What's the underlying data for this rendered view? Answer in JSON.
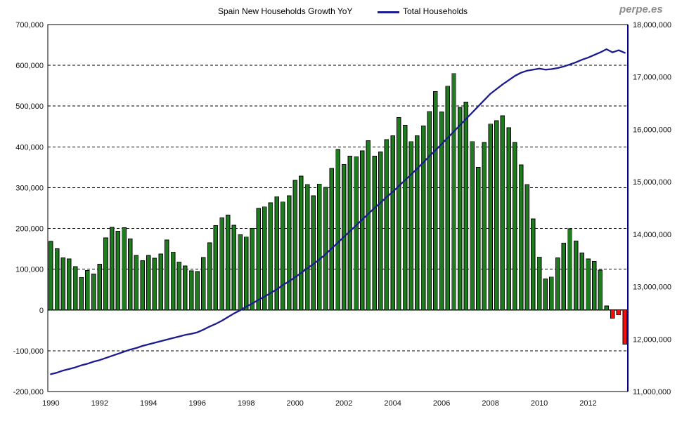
{
  "header": {
    "series1_label": "Spain New Households Growth YoY",
    "series2_label": "Total Households",
    "watermark": "perpe.es"
  },
  "chart_data": {
    "type": "bar+line",
    "frequency": "quarterly",
    "x_start": "1990-Q1",
    "x_end": "2013-Q3",
    "grid": "horizontal-dashed",
    "legend_position": "top",
    "colors": {
      "bar_positive": "#1e7c1e",
      "bar_negative": "#f90d07",
      "bar_outline": "#000000",
      "line": "#1b1b8f",
      "right_axis_line": "#00008b",
      "axis": "#000000"
    },
    "left_axis": {
      "min": -200000,
      "max": 700000,
      "step": 100000,
      "tick_values": [
        700000,
        600000,
        500000,
        400000,
        300000,
        200000,
        100000,
        0,
        -100000,
        -200000
      ],
      "tick_labels": [
        "700,000",
        "600,000",
        "500,000",
        "400,000",
        "300,000",
        "200,000",
        "100,000",
        "0",
        "-100,000",
        "-200,000"
      ]
    },
    "right_axis": {
      "min": 11000000,
      "max": 18000000,
      "step": 1000000,
      "tick_values": [
        18000000,
        17000000,
        16000000,
        15000000,
        14000000,
        13000000,
        12000000,
        11000000
      ],
      "tick_labels": [
        "18,000,000",
        "17,000,000",
        "16,000,000",
        "15,000,000",
        "14,000,000",
        "13,000,000",
        "12,000,000",
        "11,000,000"
      ]
    },
    "x_tick_years": [
      1990,
      1992,
      1994,
      1996,
      1998,
      2000,
      2002,
      2004,
      2006,
      2008,
      2010,
      2012
    ],
    "x_tick_labels": [
      "1990",
      "1992",
      "1994",
      "1996",
      "1998",
      "2000",
      "2002",
      "2004",
      "2006",
      "2008",
      "2010",
      "2012"
    ],
    "series": [
      {
        "name": "Spain New Households Growth YoY",
        "type": "bar",
        "axis": "left",
        "values": [
          168000,
          150000,
          128000,
          125000,
          106000,
          80000,
          97000,
          88000,
          112000,
          177000,
          203000,
          193000,
          202000,
          174000,
          134000,
          121000,
          134000,
          127000,
          137000,
          172000,
          142000,
          118000,
          108000,
          96000,
          94000,
          129000,
          165000,
          207000,
          226000,
          233000,
          208000,
          185000,
          179000,
          200000,
          249000,
          253000,
          263000,
          278000,
          265000,
          280000,
          318000,
          328000,
          308000,
          280000,
          309000,
          301000,
          347000,
          394000,
          357000,
          377000,
          376000,
          390000,
          415000,
          377000,
          388000,
          418000,
          427000,
          472000,
          453000,
          413000,
          427000,
          451000,
          487000,
          536000,
          486000,
          549000,
          580000,
          497000,
          510000,
          413000,
          350000,
          411000,
          456000,
          464000,
          476000,
          447000,
          411000,
          356000,
          308000,
          223000,
          130000,
          76000,
          81000,
          128000,
          164000,
          199000,
          169000,
          140000,
          125000,
          119000,
          98000,
          10000,
          -20000,
          -12000,
          -84000
        ]
      },
      {
        "name": "Total Households",
        "type": "line",
        "axis": "right",
        "values": [
          11330000,
          11360000,
          11400000,
          11430000,
          11460000,
          11500000,
          11530000,
          11570000,
          11600000,
          11640000,
          11680000,
          11720000,
          11760000,
          11800000,
          11830000,
          11870000,
          11900000,
          11930000,
          11960000,
          11990000,
          12020000,
          12050000,
          12080000,
          12100000,
          12130000,
          12180000,
          12240000,
          12290000,
          12350000,
          12420000,
          12490000,
          12550000,
          12620000,
          12680000,
          12750000,
          12810000,
          12880000,
          12950000,
          13030000,
          13100000,
          13180000,
          13260000,
          13350000,
          13430000,
          13520000,
          13620000,
          13730000,
          13840000,
          13950000,
          14060000,
          14170000,
          14280000,
          14390000,
          14500000,
          14600000,
          14710000,
          14810000,
          14920000,
          15030000,
          15140000,
          15250000,
          15370000,
          15490000,
          15600000,
          15720000,
          15840000,
          15960000,
          16080000,
          16200000,
          16320000,
          16440000,
          16560000,
          16680000,
          16770000,
          16860000,
          16940000,
          17020000,
          17080000,
          17120000,
          17140000,
          17160000,
          17140000,
          17150000,
          17170000,
          17200000,
          17240000,
          17280000,
          17330000,
          17370000,
          17420000,
          17470000,
          17530000,
          17470000,
          17510000,
          17460000
        ]
      }
    ]
  }
}
